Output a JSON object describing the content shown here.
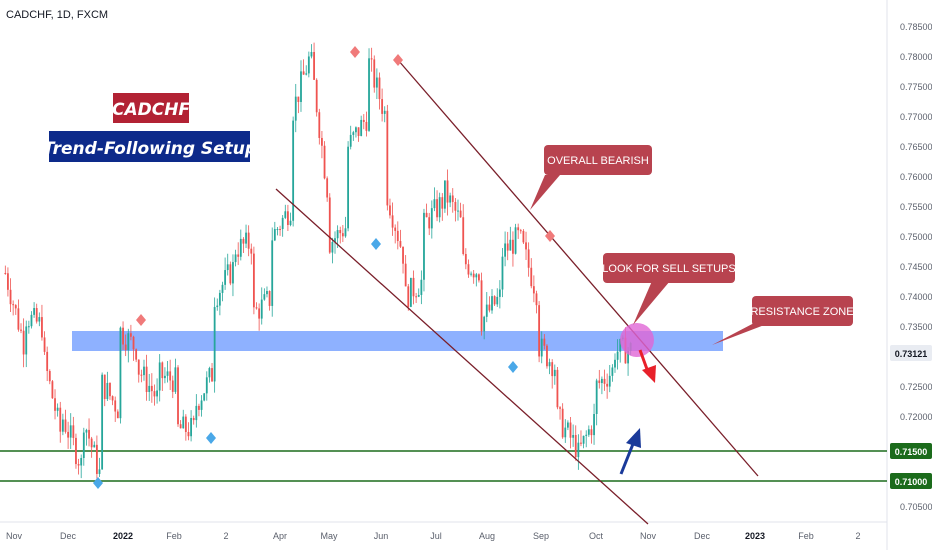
{
  "header": {
    "ticker": "CADCHF, 1D, FXCM"
  },
  "titles": {
    "symbol": "CADCHF",
    "setup": "Trend-Following Setup",
    "symbol_bg": "#b22234",
    "setup_bg": "#0d2a8a"
  },
  "callouts": {
    "overall": "OVERALL BEARISH",
    "sell": "LOOK FOR SELL SETUPS",
    "resistance": "RESISTANCE ZONE",
    "bg": "#b8434f"
  },
  "price_tags": {
    "current": "0.73121",
    "current_value": 0.73121,
    "support1": "0.71500",
    "support1_value": 0.715,
    "support2": "0.71000",
    "support2_value": 0.71
  },
  "colors": {
    "bull": "#26a69a",
    "bear": "#ef5350",
    "channel": "#7a1f2a",
    "support": "#1b6b1b",
    "zone": "#7aa3ff",
    "highlight_circle": "#e066d6",
    "arrow_down": "#e8202a",
    "arrow_up": "#1a3a9a",
    "marker_red": "#f07a7a",
    "marker_blue": "#4aa8e8"
  },
  "chart_data": {
    "type": "candlestick",
    "symbol": "CADCHF",
    "timeframe": "1D",
    "source": "FXCM",
    "y_axis": {
      "ticks": [
        "0.70500",
        "0.71000",
        "0.71500",
        "0.72000",
        "0.72500",
        "0.73000",
        "0.73500",
        "0.74000",
        "0.74500",
        "0.75000",
        "0.75500",
        "0.76000",
        "0.76500",
        "0.77000",
        "0.77500",
        "0.78000",
        "0.78500"
      ],
      "range": [
        0.7025,
        0.7895
      ]
    },
    "x_axis": {
      "ticks": [
        "Nov",
        "Dec",
        "2022",
        "Feb",
        "2",
        "Apr",
        "May",
        "Jun",
        "Jul",
        "Aug",
        "Sep",
        "Oct",
        "Nov",
        "Dec",
        "2023",
        "Feb",
        "2"
      ],
      "bold_ticks": [
        "2022",
        "2023"
      ]
    },
    "price_path": [
      [
        0.744,
        0.732
      ],
      [
        0.737,
        0.735
      ],
      [
        0.73,
        0.716
      ],
      [
        0.72,
        0.712
      ],
      [
        0.721,
        0.71
      ],
      [
        0.726,
        0.721
      ],
      [
        0.7345,
        0.731
      ],
      [
        0.728,
        0.723
      ],
      [
        0.727,
        0.726
      ],
      [
        0.718,
        0.718
      ],
      [
        0.722,
        0.728
      ],
      [
        0.74,
        0.745
      ],
      [
        0.748,
        0.749
      ],
      [
        0.737,
        0.74
      ],
      [
        0.75,
        0.755
      ],
      [
        0.77,
        0.78
      ],
      [
        0.781,
        0.756
      ],
      [
        0.749,
        0.752
      ],
      [
        0.765,
        0.77
      ],
      [
        0.78,
        0.77
      ],
      [
        0.758,
        0.746
      ],
      [
        0.74,
        0.743
      ],
      [
        0.752,
        0.756
      ],
      [
        0.758,
        0.752
      ],
      [
        0.746,
        0.744
      ],
      [
        0.736,
        0.74
      ],
      [
        0.747,
        0.75
      ],
      [
        0.75,
        0.74
      ],
      [
        0.732,
        0.728
      ],
      [
        0.72,
        0.715
      ],
      [
        0.713,
        0.72
      ],
      [
        0.725,
        0.728
      ],
      [
        0.731,
        0.7312
      ]
    ],
    "channel_upper": {
      "from": [
        "Jun",
        0.78
      ],
      "to": [
        "Dec",
        0.712
      ]
    },
    "channel_lower": {
      "from": [
        "Mar",
        0.76
      ],
      "to": [
        "Oct",
        0.7025
      ]
    },
    "resistance_zone": [
      0.732,
      0.735
    ],
    "support_levels": [
      0.715,
      0.71
    ],
    "swing_highs": [
      [
        "Nov",
        0.734
      ],
      [
        "May",
        0.782
      ],
      [
        "Jun",
        0.78
      ],
      [
        "Sep",
        0.751
      ]
    ],
    "swing_lows": [
      [
        "Dec",
        0.71
      ],
      [
        "Mar",
        0.7175
      ],
      [
        "Jun",
        0.749
      ],
      [
        "Aug",
        0.729
      ]
    ]
  }
}
